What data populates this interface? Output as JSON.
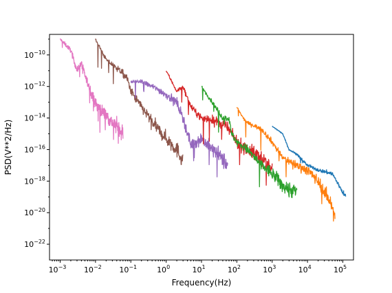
{
  "chart_data": {
    "type": "line",
    "title": "",
    "xlabel": "Frequency(Hz)",
    "ylabel": "PSD(V**2/Hz)",
    "x_scale": "log",
    "y_scale": "log",
    "xlim": [
      0.0005,
      200000
    ],
    "ylim": [
      1e-23,
      2e-09
    ],
    "grid": false,
    "legend": "none",
    "x_ticks": [
      {
        "base": "10",
        "exp": "−3",
        "value": 0.001
      },
      {
        "base": "10",
        "exp": "−2",
        "value": 0.01
      },
      {
        "base": "10",
        "exp": "−1",
        "value": 0.1
      },
      {
        "base": "10",
        "exp": "0",
        "value": 1
      },
      {
        "base": "10",
        "exp": "1",
        "value": 10
      },
      {
        "base": "10",
        "exp": "2",
        "value": 100
      },
      {
        "base": "10",
        "exp": "3",
        "value": 1000
      },
      {
        "base": "10",
        "exp": "4",
        "value": 10000
      },
      {
        "base": "10",
        "exp": "5",
        "value": 100000
      }
    ],
    "y_ticks": [
      {
        "base": "10",
        "exp": "−10",
        "value": 1e-10
      },
      {
        "base": "10",
        "exp": "−12",
        "value": 1e-12
      },
      {
        "base": "10",
        "exp": "−14",
        "value": 1e-14
      },
      {
        "base": "10",
        "exp": "−16",
        "value": 1e-16
      },
      {
        "base": "10",
        "exp": "−18",
        "value": 1e-18
      },
      {
        "base": "10",
        "exp": "−20",
        "value": 1e-20
      },
      {
        "base": "10",
        "exp": "−22",
        "value": 1e-22
      }
    ],
    "series": [
      {
        "color": "#e377c2",
        "f_min": 0.001,
        "f_max": 0.06,
        "noise": 1.0,
        "x": [
          0.001,
          0.002,
          0.003,
          0.004,
          0.005,
          0.01,
          0.02,
          0.03,
          0.05,
          0.06
        ],
        "y": [
          1e-09,
          2e-10,
          1e-11,
          3e-11,
          5e-12,
          8e-14,
          1.5e-14,
          5e-15,
          2e-15,
          1e-15
        ]
      },
      {
        "color": "#8c564b",
        "f_min": 0.01,
        "f_max": 3,
        "noise": 1.0,
        "x": [
          0.01,
          0.02,
          0.05,
          0.08,
          0.1,
          0.2,
          0.5,
          1,
          2,
          3
        ],
        "y": [
          1e-09,
          5e-11,
          1e-11,
          3e-12,
          5e-13,
          5e-14,
          3e-15,
          5e-16,
          1e-16,
          2e-17
        ]
      },
      {
        "color": "#9467bd",
        "f_min": 0.1,
        "f_max": 55,
        "noise": 1.0,
        "x": [
          0.1,
          0.2,
          0.5,
          1,
          2,
          3,
          5,
          10,
          20,
          30,
          55
        ],
        "y": [
          2e-12,
          2e-12,
          8e-13,
          3e-13,
          1e-13,
          1e-14,
          2e-16,
          5e-16,
          1e-16,
          5e-17,
          1e-17
        ]
      },
      {
        "color": "#d62728",
        "f_min": 1,
        "f_max": 1000,
        "noise": 1.0,
        "x": [
          1,
          2,
          3,
          5,
          10,
          20,
          50,
          100,
          200,
          500,
          1000
        ],
        "y": [
          1e-11,
          5e-13,
          1e-12,
          5e-14,
          1e-14,
          8e-15,
          3e-15,
          3e-16,
          1e-16,
          3e-17,
          5e-18
        ]
      },
      {
        "color": "#2ca02c",
        "f_min": 10,
        "f_max": 5000,
        "noise": 1.0,
        "x": [
          10,
          20,
          40,
          60,
          70,
          100,
          200,
          500,
          1000,
          2000,
          5000
        ],
        "y": [
          1e-12,
          1e-13,
          1e-14,
          1e-14,
          1e-15,
          3e-16,
          1e-16,
          1e-17,
          3e-18,
          5e-19,
          2e-19
        ]
      },
      {
        "color": "#ff7f0e",
        "f_min": 100,
        "f_max": 60000,
        "noise": 0.8,
        "x": [
          100,
          150,
          200,
          500,
          1000,
          2000,
          5000,
          10000,
          20000,
          50000,
          60000
        ],
        "y": [
          5e-14,
          1e-14,
          5e-15,
          2e-15,
          3e-16,
          3e-17,
          1e-17,
          5e-18,
          1e-18,
          3e-20,
          5e-21
        ]
      },
      {
        "color": "#1f77b4",
        "f_min": 1000,
        "f_max": 120000,
        "noise": 0.3,
        "x": [
          1000,
          2000,
          3000,
          5000,
          10000,
          20000,
          50000,
          100000,
          120000
        ],
        "y": [
          3e-15,
          1e-15,
          1e-16,
          5e-17,
          1e-17,
          5e-18,
          3e-18,
          2e-19,
          1e-19
        ]
      }
    ]
  }
}
